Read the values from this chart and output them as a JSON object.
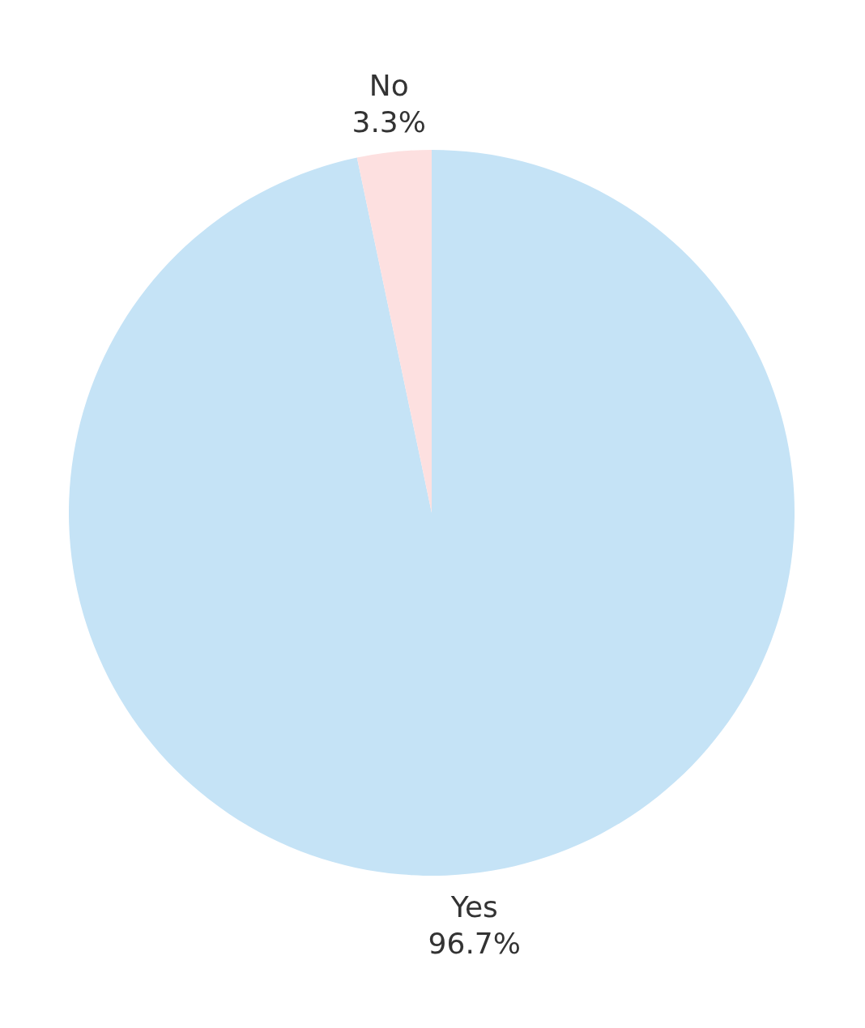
{
  "chart_data": {
    "type": "pie",
    "categories": [
      "Yes",
      "No"
    ],
    "values": [
      96.7,
      3.3
    ],
    "colors": [
      "#c5e3f6",
      "#fde0e0"
    ],
    "value_labels": [
      "96.7%",
      "3.3%"
    ]
  }
}
